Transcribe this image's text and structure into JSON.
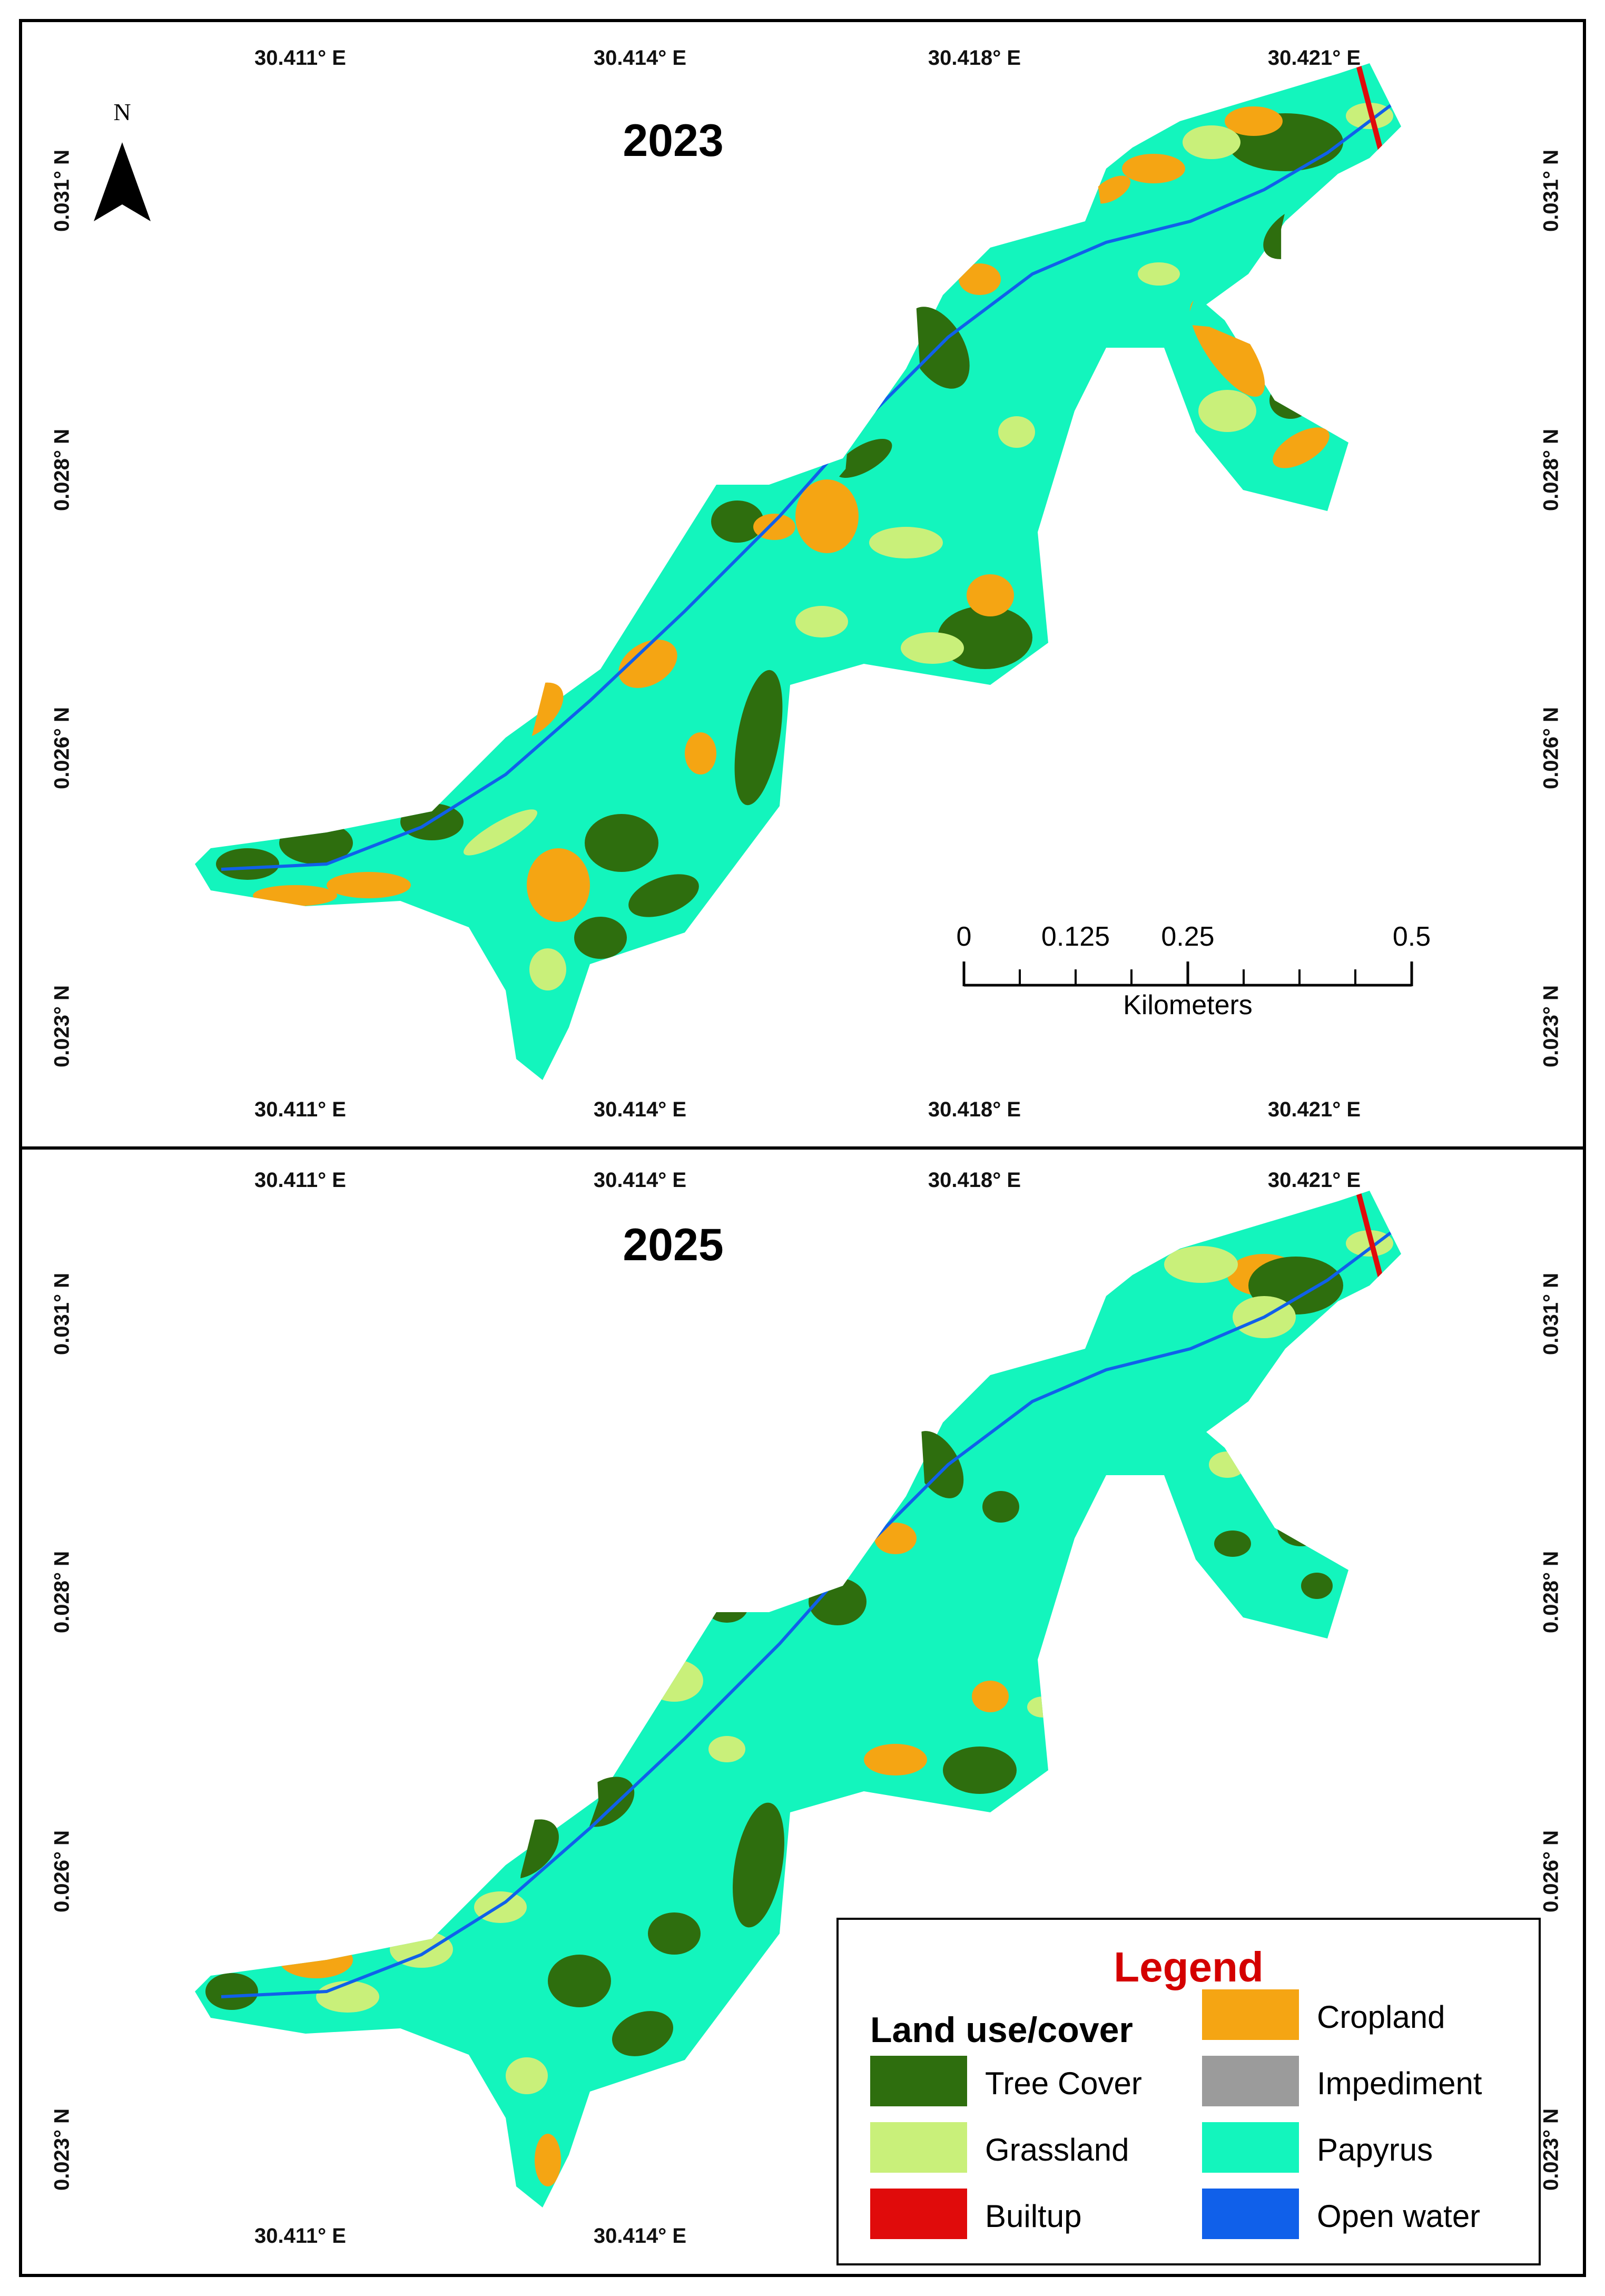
{
  "panels": [
    {
      "year": "2023",
      "lon_labels": [
        "30.411° E",
        "30.414° E",
        "30.418° E",
        "30.421° E"
      ],
      "lat_labels": [
        "0.031° N",
        "0.028° N",
        "0.026° N",
        "0.023° N"
      ]
    },
    {
      "year": "2025",
      "lon_labels": [
        "30.411° E",
        "30.414° E",
        "30.418° E",
        "30.421° E"
      ],
      "lat_labels": [
        "0.031° N",
        "0.028° N",
        "0.026° N",
        "0.023° N"
      ]
    }
  ],
  "north_arrow": {
    "label": "N"
  },
  "scale_bar": {
    "ticks": [
      "0",
      "0.125",
      "0.25",
      "0.5"
    ],
    "unit": "Kilometers"
  },
  "legend": {
    "title": "Legend",
    "subtitle": "Land use/cover",
    "items": [
      {
        "label": "Tree Cover",
        "color": "#2e6e0e"
      },
      {
        "label": "Cropland",
        "color": "#f5a513"
      },
      {
        "label": "Grassland",
        "color": "#c9f07a"
      },
      {
        "label": "Impediment",
        "color": "#9b9b9b"
      },
      {
        "label": "Builtup",
        "color": "#e00b0b"
      },
      {
        "label": "Papyrus",
        "color": "#13f5bd"
      },
      {
        "label": "Open water",
        "color": "#1060ea"
      }
    ]
  },
  "colors": {
    "frame": "#000000",
    "legend_title": "#d40000",
    "papyrus": "#13f5bd",
    "tree_cover": "#2e6e0e",
    "cropland": "#f5a513",
    "grassland": "#c9f07a",
    "builtup": "#e00b0b",
    "open_water": "#1060ea"
  }
}
